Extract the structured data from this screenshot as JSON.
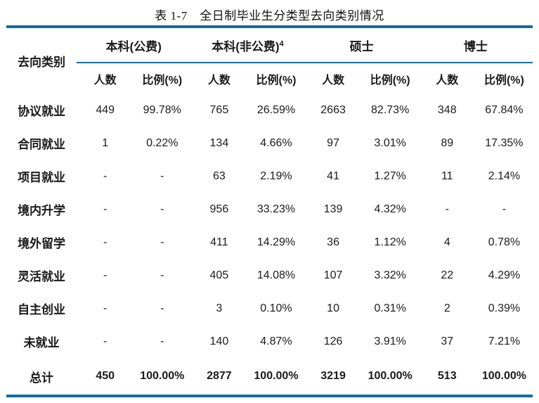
{
  "title": "表 1-7　全日制毕业生分类型去向类别情况",
  "colors": {
    "rule": "#176C9E",
    "text": "#1a1a1a"
  },
  "table": {
    "corner_header": "去向类别",
    "groups": [
      {
        "label": "本科(公费)",
        "sup": ""
      },
      {
        "label": "本科(非公费)",
        "sup": "4"
      },
      {
        "label": "硕士",
        "sup": ""
      },
      {
        "label": "博士",
        "sup": ""
      }
    ],
    "subheaders": {
      "count": "人数",
      "ratio": "比例(%)"
    },
    "rows": [
      {
        "label": "协议就业",
        "cells": [
          "449",
          "99.78%",
          "765",
          "26.59%",
          "2663",
          "82.73%",
          "348",
          "67.84%"
        ]
      },
      {
        "label": "合同就业",
        "cells": [
          "1",
          "0.22%",
          "134",
          "4.66%",
          "97",
          "3.01%",
          "89",
          "17.35%"
        ]
      },
      {
        "label": "项目就业",
        "cells": [
          "-",
          "-",
          "63",
          "2.19%",
          "41",
          "1.27%",
          "11",
          "2.14%"
        ]
      },
      {
        "label": "境内升学",
        "cells": [
          "-",
          "-",
          "956",
          "33.23%",
          "139",
          "4.32%",
          "-",
          "-"
        ]
      },
      {
        "label": "境外留学",
        "cells": [
          "-",
          "-",
          "411",
          "14.29%",
          "36",
          "1.12%",
          "4",
          "0.78%"
        ]
      },
      {
        "label": "灵活就业",
        "cells": [
          "-",
          "-",
          "405",
          "14.08%",
          "107",
          "3.32%",
          "22",
          "4.29%"
        ]
      },
      {
        "label": "自主创业",
        "cells": [
          "-",
          "-",
          "3",
          "0.10%",
          "10",
          "0.31%",
          "2",
          "0.39%"
        ]
      },
      {
        "label": "未就业",
        "cells": [
          "-",
          "-",
          "140",
          "4.87%",
          "126",
          "3.91%",
          "37",
          "7.21%"
        ]
      }
    ],
    "total_row": {
      "label": "总计",
      "cells": [
        "450",
        "100.00%",
        "2877",
        "100.00%",
        "3219",
        "100.00%",
        "513",
        "100.00%"
      ]
    }
  }
}
